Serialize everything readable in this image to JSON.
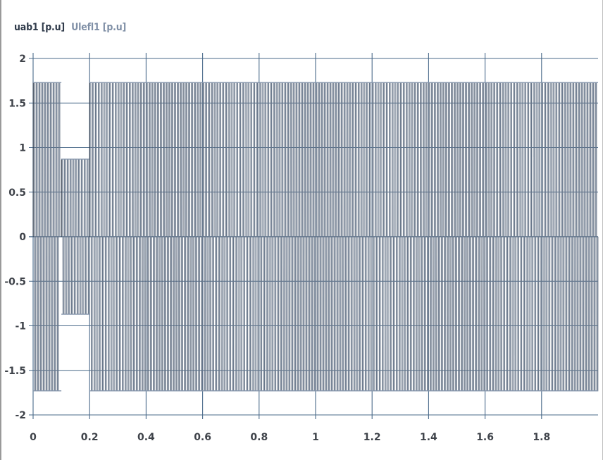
{
  "legend": [
    {
      "label": "uab1",
      "unit": "[p.u]",
      "color": "#2f3a4a"
    },
    {
      "label": "Ulefl1",
      "unit": "[p.u]",
      "color": "#7f8fa6"
    }
  ],
  "colors": {
    "background": "#ffffff",
    "grid": "#4a6a8a",
    "axis_text": "#3f434a",
    "series_dark": "#2f3a4a",
    "series_light": "#8797ad"
  },
  "chart_data": {
    "type": "line",
    "title": "",
    "xlabel": "",
    "ylabel": "",
    "xlim": [
      0,
      2
    ],
    "ylim": [
      -2,
      2
    ],
    "grid": true,
    "legend_position": "top-left",
    "x_ticks": [
      0,
      0.2,
      0.4,
      0.6,
      0.8,
      1,
      1.2,
      1.4,
      1.6,
      1.8
    ],
    "x_tick_labels": [
      "0",
      "0.2",
      "0.4",
      "0.6",
      "0.8",
      "1",
      "1.2",
      "1.4",
      "1.6",
      "1.8"
    ],
    "y_ticks": [
      2,
      1.5,
      1,
      0.5,
      0,
      -0.5,
      -1,
      -1.5,
      -2
    ],
    "y_tick_labels": [
      "2",
      "1.5",
      "1",
      "0.5",
      "0",
      "-0.5",
      "-1",
      "-1.5",
      "-2"
    ],
    "series": [
      {
        "name": "uab1 [p.u]",
        "kind": "pwm_line_voltage",
        "switching_frequency_hz": 100,
        "high_level": 1.73,
        "segments": [
          {
            "x_start": 0,
            "x_end": 0.095,
            "amplitude": 1.73
          },
          {
            "x_start": 0.1,
            "x_end": 0.2,
            "amplitude": 0.87
          },
          {
            "x_start": 0.2,
            "x_end": 2,
            "amplitude": 1.73
          }
        ]
      },
      {
        "name": "Ulefl1 [p.u]",
        "kind": "line_voltage_rms",
        "segments": [
          {
            "x_start": 0,
            "x_end": 0.1,
            "value": 1.73
          },
          {
            "x_start": 0.1,
            "x_end": 0.2,
            "value": 0.87
          },
          {
            "x_start": 0.2,
            "x_end": 2,
            "value": 1.73
          }
        ]
      }
    ]
  }
}
